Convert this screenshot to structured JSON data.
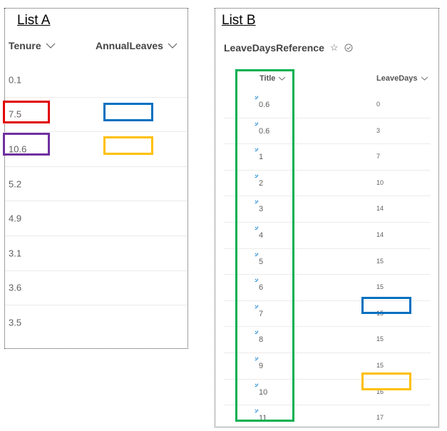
{
  "listA": {
    "label": "List A",
    "columns": {
      "tenure": "Tenure",
      "annual_leaves": "AnnualLeaves"
    },
    "rows": [
      "0.1",
      "7.5",
      "10.6",
      "5.2",
      "4.9",
      "3.1",
      "3.6",
      "3.5"
    ]
  },
  "listB": {
    "label": "List B",
    "list_name": "LeaveDaysReference",
    "columns": {
      "title": "Title",
      "leave_days": "LeaveDays"
    },
    "rows": [
      {
        "title": "0.6",
        "days": "0"
      },
      {
        "title": "0.6",
        "days": "3"
      },
      {
        "title": "1",
        "days": "7"
      },
      {
        "title": "2",
        "days": "10"
      },
      {
        "title": "3",
        "days": "14"
      },
      {
        "title": "4",
        "days": "14"
      },
      {
        "title": "5",
        "days": "15"
      },
      {
        "title": "6",
        "days": "15"
      },
      {
        "title": "7",
        "days": "15"
      },
      {
        "title": "8",
        "days": "15"
      },
      {
        "title": "9",
        "days": "15"
      },
      {
        "title": "10",
        "days": "16"
      },
      {
        "title": "11",
        "days": "17"
      }
    ]
  },
  "icons": {
    "favorite": "star-icon",
    "status": "check-circle-icon",
    "sort": "chevron-down-icon",
    "new_item": "sparkle-icon"
  },
  "colors": {
    "red": "#e00000",
    "blue": "#0070c0",
    "purple": "#7030a0",
    "yellow": "#ffc000",
    "green": "#00b050"
  }
}
